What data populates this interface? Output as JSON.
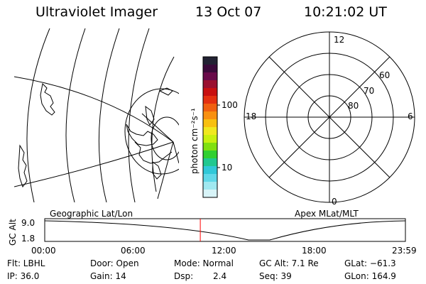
{
  "header": {
    "instrument": "Ultraviolet Imager",
    "date": "13 Oct 07",
    "time": "10:21:02 UT"
  },
  "left_panel": {
    "label": "Geographic Lat/Lon"
  },
  "colorbar": {
    "label": "photon cm⁻²s⁻¹",
    "ticks": [
      "100",
      "10"
    ],
    "colors": [
      "#222233",
      "#3a0a3a",
      "#6a0a4a",
      "#9a1030",
      "#c81010",
      "#e43010",
      "#f06010",
      "#f89010",
      "#f8c010",
      "#f0e820",
      "#c8f010",
      "#80e010",
      "#30d030",
      "#20c890",
      "#30c8d8",
      "#60d8e8",
      "#a0e8f0",
      "#d8f4f8"
    ]
  },
  "polar_plot": {
    "label": "Apex MLat/MLT",
    "mlt_labels": [
      "12",
      "18",
      "6",
      "0"
    ],
    "lat_labels": [
      "60",
      "70",
      "80"
    ]
  },
  "timeline": {
    "ylabel": "GC Alt",
    "yticks": [
      "9.0",
      "1.8"
    ],
    "xticks": [
      "00:00",
      "06:00",
      "12:00",
      "18:00",
      "23:59"
    ],
    "marker_time_hours": 10.35,
    "marker_color": "#ff0000"
  },
  "info": {
    "filter": "Flt: LBHL",
    "door": "Door: Open",
    "mode": "Mode: Normal",
    "gc_alt": "GC Alt: 7.1 Re",
    "glat": "GLat: −61.3",
    "ip": "IP: 36.0",
    "gain": "Gain: 14",
    "dsp_label": "Dsp:",
    "dsp_value": "2.4",
    "seq": "Seq: 39",
    "glon": "GLon: 164.9"
  }
}
